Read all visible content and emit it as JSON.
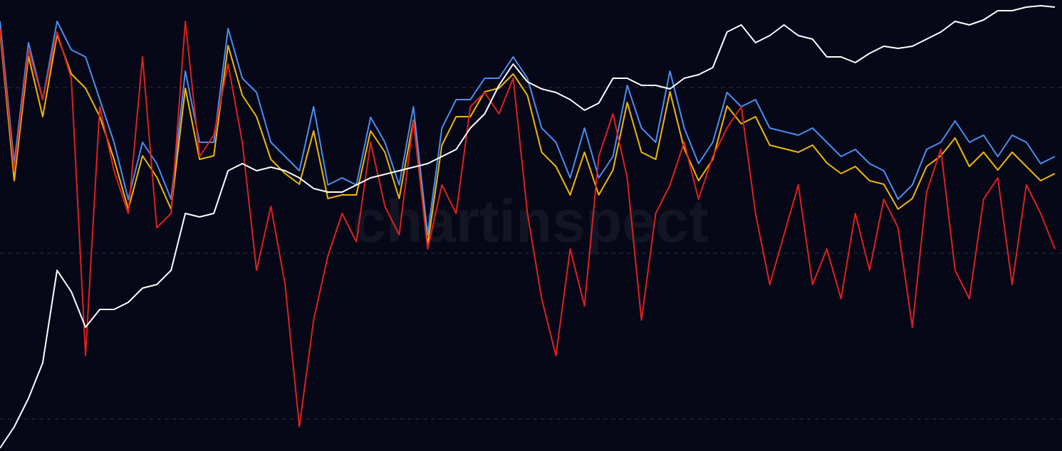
{
  "chart_data": {
    "type": "line",
    "watermark": "chartinspect",
    "x": [
      0,
      20,
      40,
      60,
      80,
      100,
      120,
      140,
      160,
      180,
      200,
      220,
      240,
      260,
      280,
      300,
      320,
      340,
      360,
      380,
      400,
      420,
      440,
      460,
      480,
      500,
      520,
      540,
      560,
      580,
      600,
      620,
      640,
      660,
      680,
      700,
      720,
      740,
      760,
      780,
      800,
      820,
      840,
      860,
      880,
      900,
      920,
      940,
      960,
      980,
      1000,
      1020,
      1040,
      1060,
      1080,
      1100,
      1120,
      1140,
      1160,
      1180,
      1200,
      1220,
      1240,
      1260,
      1280,
      1300,
      1320,
      1340,
      1360,
      1380,
      1400,
      1420,
      1440,
      1460,
      1480
    ],
    "xlim": [
      0,
      1490
    ],
    "ylim": [
      0,
      634
    ],
    "yticks": [
      45,
      278,
      511
    ],
    "grid": true,
    "series": [
      {
        "color": "#4a8ff0",
        "values": [
          604,
          404,
          574,
          494,
          604,
          564,
          554,
          494,
          434,
          354,
          434,
          404,
          354,
          534,
          434,
          434,
          594,
          524,
          504,
          434,
          414,
          394,
          484,
          374,
          384,
          374,
          469,
          434,
          374,
          484,
          304,
          454,
          494,
          494,
          524,
          524,
          554,
          524,
          454,
          434,
          384,
          454,
          384,
          414,
          514,
          454,
          434,
          534,
          454,
          404,
          434,
          504,
          484,
          494,
          454,
          449,
          444,
          454,
          434,
          414,
          424,
          404,
          394,
          354,
          374,
          424,
          434,
          464,
          434,
          444,
          414,
          444,
          434,
          404,
          414
        ]
      },
      {
        "color": "#f2b705",
        "values": [
          590,
          380,
          555,
          470,
          585,
          530,
          510,
          470,
          410,
          340,
          415,
          385,
          340,
          510,
          410,
          415,
          570,
          500,
          470,
          410,
          390,
          375,
          450,
          355,
          360,
          360,
          450,
          420,
          355,
          465,
          290,
          430,
          470,
          470,
          505,
          510,
          530,
          500,
          420,
          400,
          360,
          420,
          360,
          395,
          490,
          420,
          410,
          505,
          425,
          380,
          410,
          485,
          460,
          470,
          430,
          425,
          420,
          430,
          405,
          390,
          400,
          380,
          375,
          340,
          355,
          400,
          415,
          440,
          400,
          420,
          395,
          420,
          400,
          380,
          390
        ]
      },
      {
        "color": "#e0201e",
        "values": [
          594,
          394,
          564,
          494,
          589,
          524,
          134,
          484,
          394,
          334,
          554,
          314,
          334,
          604,
          414,
          444,
          544,
          434,
          254,
          344,
          234,
          34,
          184,
          274,
          334,
          294,
          434,
          344,
          304,
          464,
          284,
          374,
          334,
          484,
          504,
          474,
          524,
          334,
          214,
          134,
          284,
          204,
          414,
          474,
          384,
          184,
          334,
          374,
          434,
          354,
          414,
          454,
          484,
          334,
          234,
          304,
          374,
          234,
          284,
          214,
          334,
          254,
          354,
          314,
          174,
          364,
          424,
          254,
          214,
          354,
          384,
          234,
          374,
          334,
          284
        ]
      },
      {
        "color": "#ffffff",
        "values": [
          4,
          34,
          74,
          124,
          254,
          224,
          174,
          199,
          199,
          209,
          229,
          234,
          254,
          334,
          329,
          334,
          394,
          404,
          394,
          399,
          394,
          384,
          369,
          364,
          364,
          374,
          384,
          389,
          394,
          399,
          404,
          414,
          424,
          454,
          474,
          514,
          544,
          519,
          509,
          504,
          494,
          479,
          489,
          524,
          524,
          514,
          514,
          509,
          524,
          529,
          539,
          589,
          599,
          574,
          584,
          599,
          584,
          579,
          554,
          554,
          546,
          559,
          569,
          566,
          569,
          579,
          589,
          604,
          599,
          606,
          619,
          619,
          624,
          626,
          624
        ]
      }
    ]
  }
}
